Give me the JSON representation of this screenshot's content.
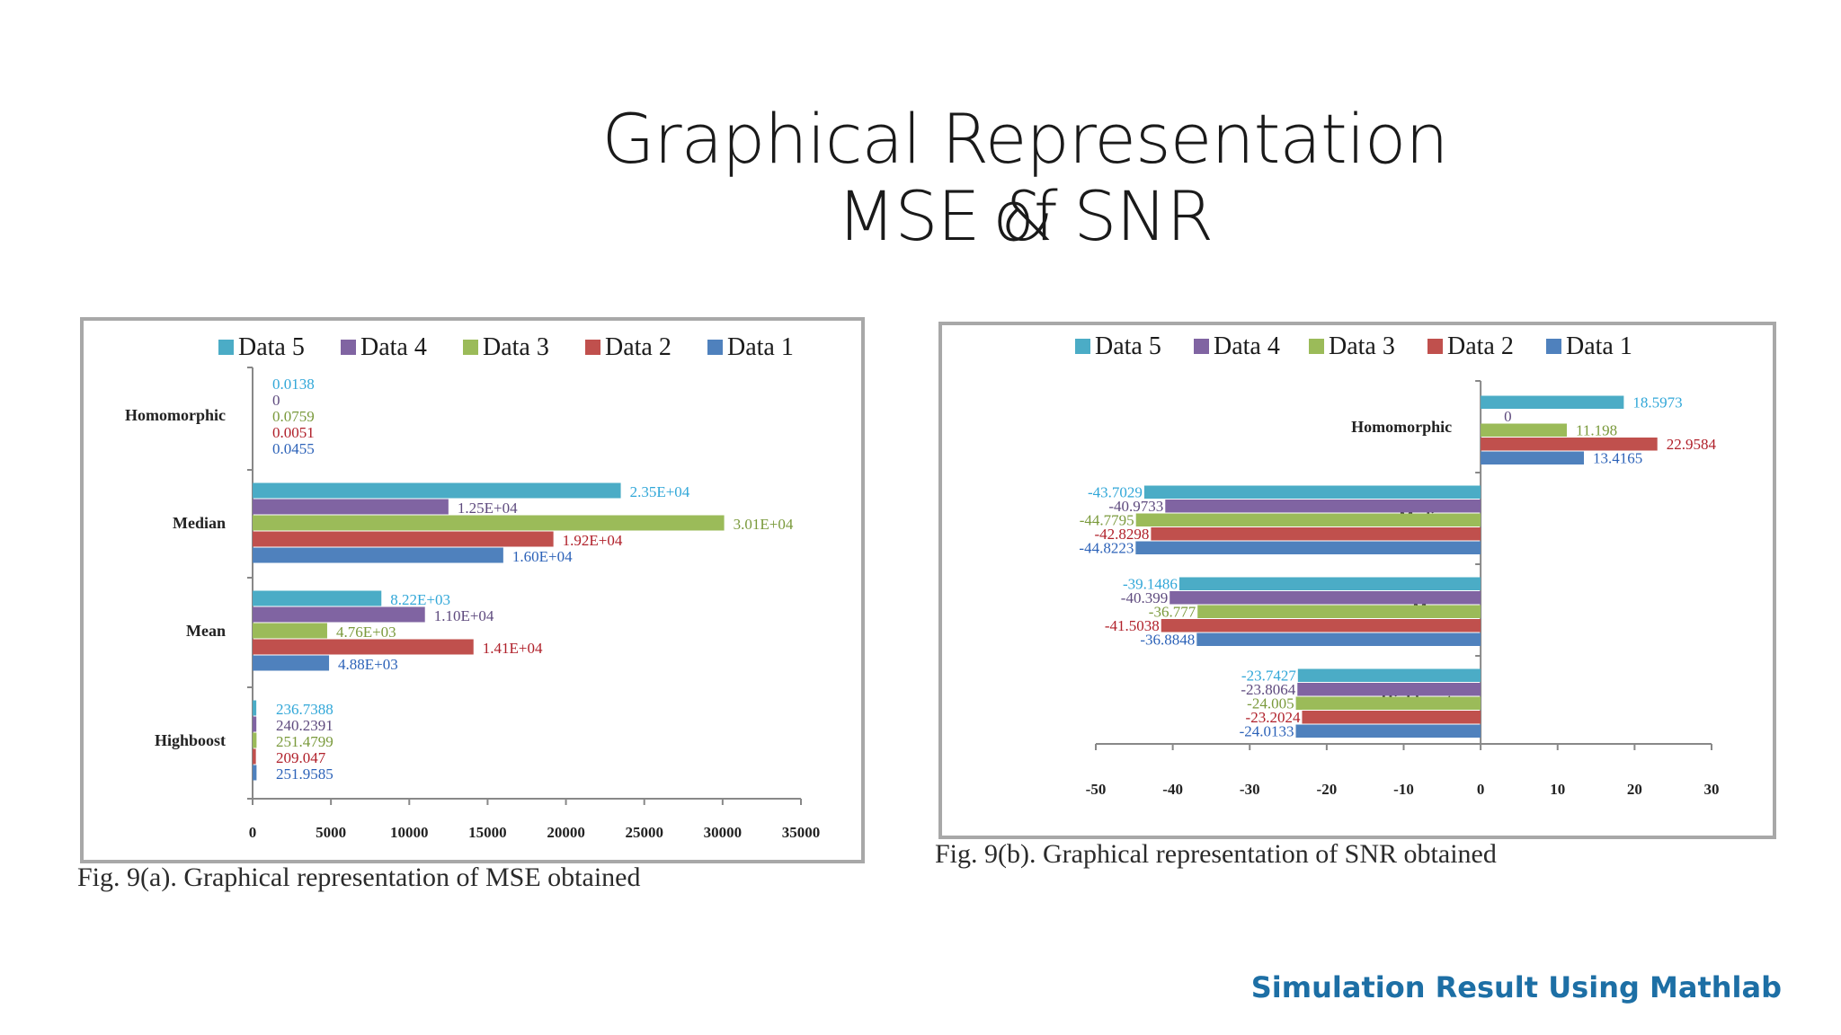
{
  "slide": {
    "title_line1": "Graphical Representation of",
    "title_line2": "MSE & SNR",
    "footer": "Simulation Result Using Mathlab"
  },
  "captions": {
    "mse": "Fig. 9(a). Graphical representation of MSE obtained",
    "snr": "Fig. 9(b). Graphical representation of SNR obtained"
  },
  "series_colors": {
    "Data 5": "#4bacc6",
    "Data 4": "#8064a2",
    "Data 3": "#9bbb59",
    "Data 2": "#c0504d",
    "Data 1": "#4f81bd"
  },
  "label_colors": {
    "Data 5": "#31a7d8",
    "Data 4": "#5e4a7e",
    "Data 3": "#7a9a3c",
    "Data 2": "#b0202a",
    "Data 1": "#2c62b8"
  },
  "chart_data": [
    {
      "type": "bar",
      "orientation": "horizontal",
      "title": "",
      "caption": "Fig. 9(a). Graphical representation of MSE obtained",
      "legend": [
        "Data 5",
        "Data 4",
        "Data 3",
        "Data 2",
        "Data 1"
      ],
      "categories": [
        "Homomorphic",
        "Median",
        "Mean",
        "Highboost"
      ],
      "xlim": [
        0,
        35000
      ],
      "xticks": [
        0,
        5000,
        10000,
        15000,
        20000,
        25000,
        30000,
        35000
      ],
      "series": [
        {
          "name": "Data 5",
          "values": [
            0.0138,
            23500,
            8220,
            236.7388
          ],
          "labels": [
            "0.0138",
            "2.35E+04",
            "8.22E+03",
            "236.7388"
          ]
        },
        {
          "name": "Data 4",
          "values": [
            0,
            12500,
            11000,
            240.2391
          ],
          "labels": [
            "0",
            "1.25E+04",
            "1.10E+04",
            "240.2391"
          ]
        },
        {
          "name": "Data 3",
          "values": [
            0.0759,
            30100,
            4760,
            251.4799
          ],
          "labels": [
            "0.0759",
            "3.01E+04",
            "4.76E+03",
            "251.4799"
          ]
        },
        {
          "name": "Data 2",
          "values": [
            0.0051,
            19200,
            14100,
            209.047
          ],
          "labels": [
            "0.0051",
            "1.92E+04",
            "1.41E+04",
            "209.047"
          ]
        },
        {
          "name": "Data 1",
          "values": [
            0.0455,
            16000,
            4880,
            251.9585
          ],
          "labels": [
            "0.0455",
            "1.60E+04",
            "4.88E+03",
            "251.9585"
          ]
        }
      ]
    },
    {
      "type": "bar",
      "orientation": "horizontal",
      "title": "",
      "caption": "Fig. 9(b). Graphical representation of SNR obtained",
      "legend": [
        "Data 5",
        "Data 4",
        "Data 3",
        "Data 2",
        "Data 1"
      ],
      "categories": [
        "Homomorphic",
        "Median",
        "Mean",
        "Highboost"
      ],
      "xlim": [
        -50,
        30
      ],
      "xticks": [
        -50,
        -40,
        -30,
        -20,
        -10,
        0,
        10,
        20,
        30
      ],
      "series": [
        {
          "name": "Data 5",
          "values": [
            18.5973,
            -43.7029,
            -39.1486,
            -23.7427
          ],
          "labels": [
            "18.5973",
            "-43.7029",
            "-39.1486",
            "-23.7427"
          ]
        },
        {
          "name": "Data 4",
          "values": [
            0,
            -40.9733,
            -40.399,
            -23.8064
          ],
          "labels": [
            "0",
            "-40.9733",
            "-40.399",
            "-23.8064"
          ]
        },
        {
          "name": "Data 3",
          "values": [
            11.198,
            -44.7795,
            -36.777,
            -24.005
          ],
          "labels": [
            "11.198",
            "-44.7795",
            "-36.777",
            "-24.005"
          ]
        },
        {
          "name": "Data 2",
          "values": [
            22.9584,
            -42.8298,
            -41.5038,
            -23.2024
          ],
          "labels": [
            "22.9584",
            "-42.8298",
            "-41.5038",
            "-23.2024"
          ]
        },
        {
          "name": "Data 1",
          "values": [
            13.4165,
            -44.8223,
            -36.8848,
            -24.0133
          ],
          "labels": [
            "13.4165",
            "-44.8223",
            "-36.8848",
            "-24.0133"
          ]
        }
      ]
    }
  ]
}
